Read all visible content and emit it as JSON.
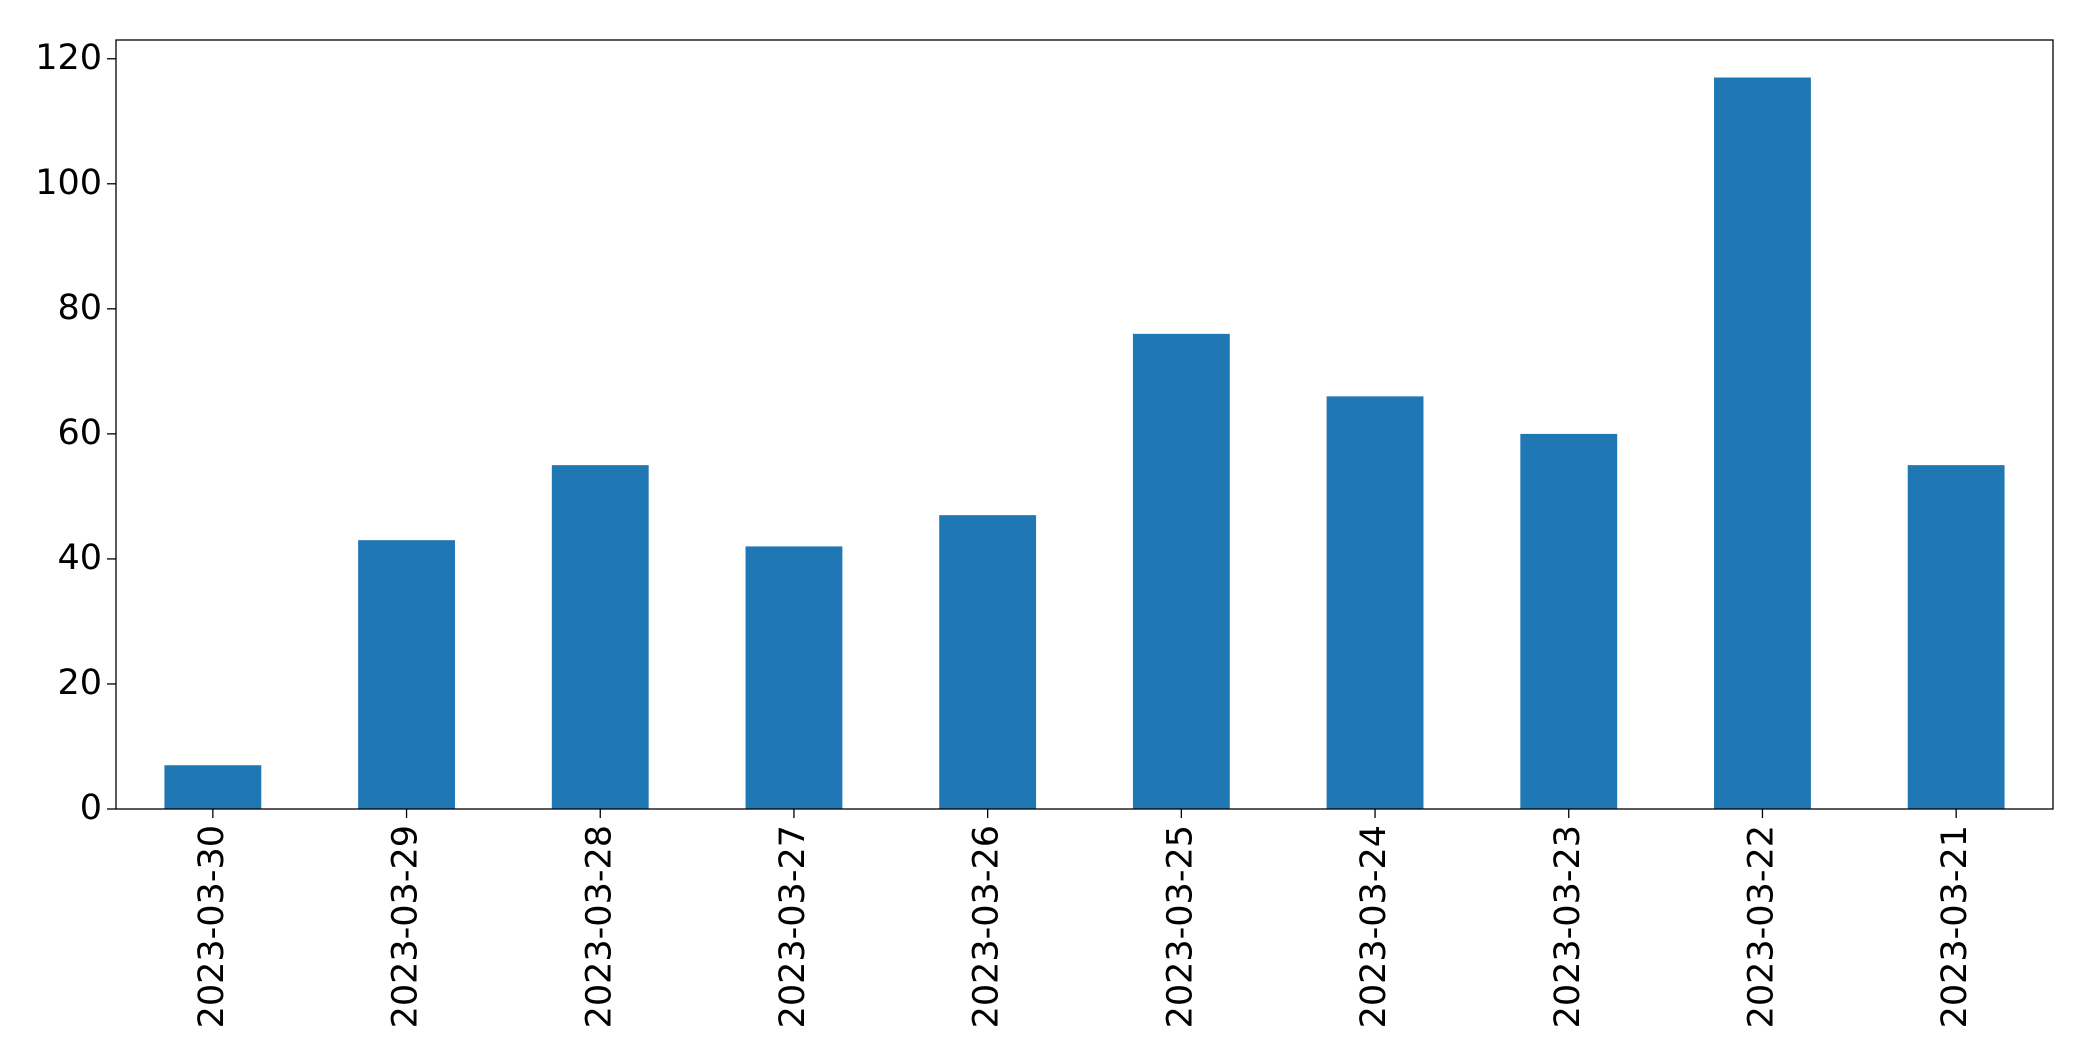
{
  "chart_data": {
    "type": "bar",
    "categories": [
      "2023-03-30",
      "2023-03-29",
      "2023-03-28",
      "2023-03-27",
      "2023-03-26",
      "2023-03-25",
      "2023-03-24",
      "2023-03-23",
      "2023-03-22",
      "2023-03-21"
    ],
    "values": [
      7,
      43,
      55,
      42,
      47,
      76,
      66,
      60,
      117,
      55
    ],
    "color": "#1f77b4",
    "ylim": [
      0,
      123
    ],
    "yticks": [
      0,
      20,
      40,
      60,
      80,
      100,
      120
    ],
    "grid": false
  }
}
